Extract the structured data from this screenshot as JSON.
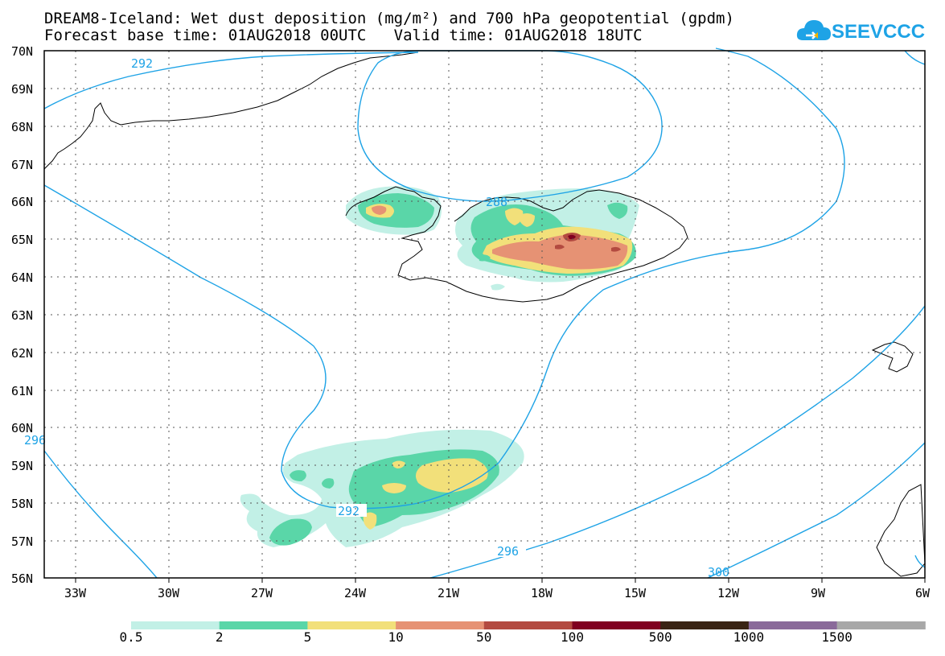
{
  "title_line1": "DREAM8-Iceland: Wet dust deposition (mg/m²) and 700 hPa geopotential (gpdm)",
  "title_line2": "Forecast base time: 01AUG2018 00UTC   Valid time: 01AUG2018 18UTC",
  "logo_text": "SEEVCCC",
  "lat_labels": [
    "70N",
    "69N",
    "68N",
    "67N",
    "66N",
    "65N",
    "64N",
    "63N",
    "62N",
    "61N",
    "60N",
    "59N",
    "58N",
    "57N",
    "56N"
  ],
  "lon_labels": [
    "33W",
    "30W",
    "27W",
    "24W",
    "21W",
    "18W",
    "15W",
    "12W",
    "9W",
    "6W"
  ],
  "contour_labels": [
    "292",
    "288",
    "292",
    "296",
    "296",
    "300"
  ],
  "colorbar": {
    "labels": [
      "0.5",
      "2",
      "5",
      "10",
      "50",
      "100",
      "500",
      "1000",
      "1500"
    ],
    "colors": [
      "#c2f0e6",
      "#5ad6a8",
      "#f2e07a",
      "#e69274",
      "#b34a40",
      "#800020",
      "#3a2414",
      "#8a6a9a",
      "#a8a8a8"
    ]
  },
  "colors": {
    "contour": "#1ea3e6",
    "coast": "#000000",
    "frame": "#000000"
  }
}
